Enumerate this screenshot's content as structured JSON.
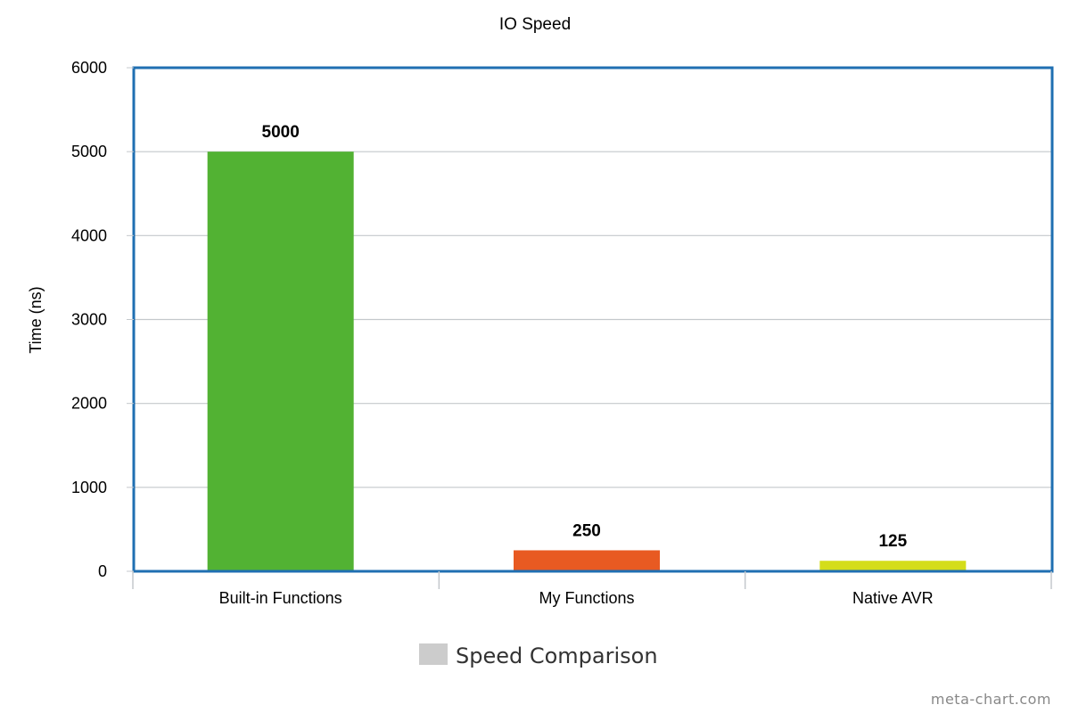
{
  "chart_data": {
    "type": "bar",
    "title": "IO Speed",
    "xlabel": "",
    "ylabel": "Time (ns)",
    "categories": [
      "Built-in Functions",
      "My Functions",
      "Native AVR"
    ],
    "series": [
      {
        "name": "Speed Comparison",
        "values": [
          5000,
          250,
          125
        ],
        "colors": [
          "#52b233",
          "#e85a22",
          "#d4dd1a"
        ]
      }
    ],
    "data_labels": [
      "5000",
      "250",
      "125"
    ],
    "ylim": [
      0,
      6000
    ],
    "yticks": [
      0,
      1000,
      2000,
      3000,
      4000,
      5000,
      6000
    ],
    "grid": true,
    "legend": {
      "placement": "bottom-center",
      "swatch_color": "#cccccc"
    },
    "frame_color": "#1f6fb2",
    "grid_color": "#c4c8cc"
  },
  "watermark": "meta-chart.com"
}
